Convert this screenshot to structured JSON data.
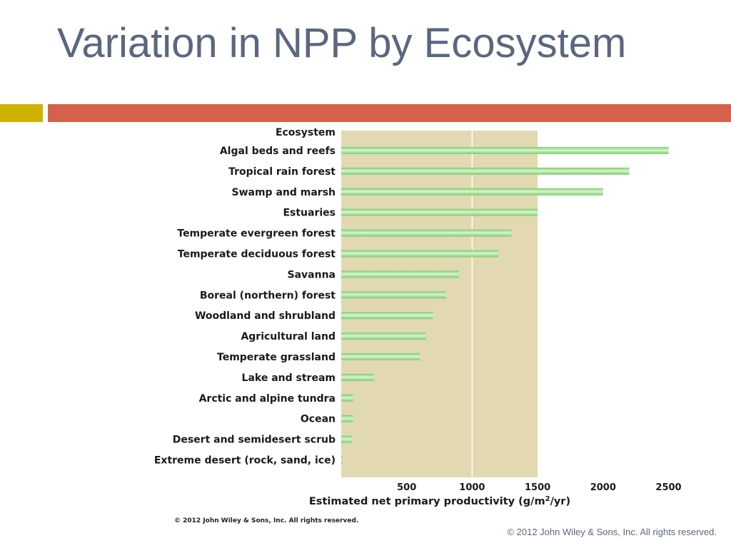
{
  "slide": {
    "title": "Variation in NPP by Ecosystem",
    "footer": "© 2012 John Wiley & Sons, Inc. All rights reserved.",
    "figure_credit": "© 2012 John Wiley & Sons, Inc. All rights reserved."
  },
  "colors": {
    "title": "#5a6780",
    "accent_left": "#cdb200",
    "accent_right": "#d4614a",
    "plot_background": "#e2d9b2",
    "bar_green": "#7ccc6e",
    "bar_light": "#d8f5cf",
    "gridline": "#ffffff"
  },
  "chart_data": {
    "type": "bar",
    "orientation": "horizontal",
    "category_header": "Ecosystem",
    "xlabel": "Estimated net primary productivity",
    "xlabel_units": "(g/m",
    "xlabel_exponent": "2",
    "xlabel_units_end": "/yr)",
    "xlim": [
      0,
      3000
    ],
    "xticks": [
      500,
      1000,
      1500,
      2000,
      2500
    ],
    "gridlines_at": [
      1000,
      2000
    ],
    "categories": [
      "Algal beds and reefs",
      "Tropical rain forest",
      "Swamp and marsh",
      "Estuaries",
      "Temperate evergreen forest",
      "Temperate deciduous forest",
      "Savanna",
      "Boreal (northern) forest",
      "Woodland and shrubland",
      "Agricultural land",
      "Temperate grassland",
      "Lake and stream",
      "Arctic and alpine tundra",
      "Ocean",
      "Desert and semidesert scrub",
      "Extreme desert (rock, sand, ice)"
    ],
    "values": [
      2500,
      2200,
      2000,
      1500,
      1300,
      1200,
      900,
      800,
      700,
      650,
      600,
      250,
      90,
      90,
      80,
      3
    ]
  }
}
